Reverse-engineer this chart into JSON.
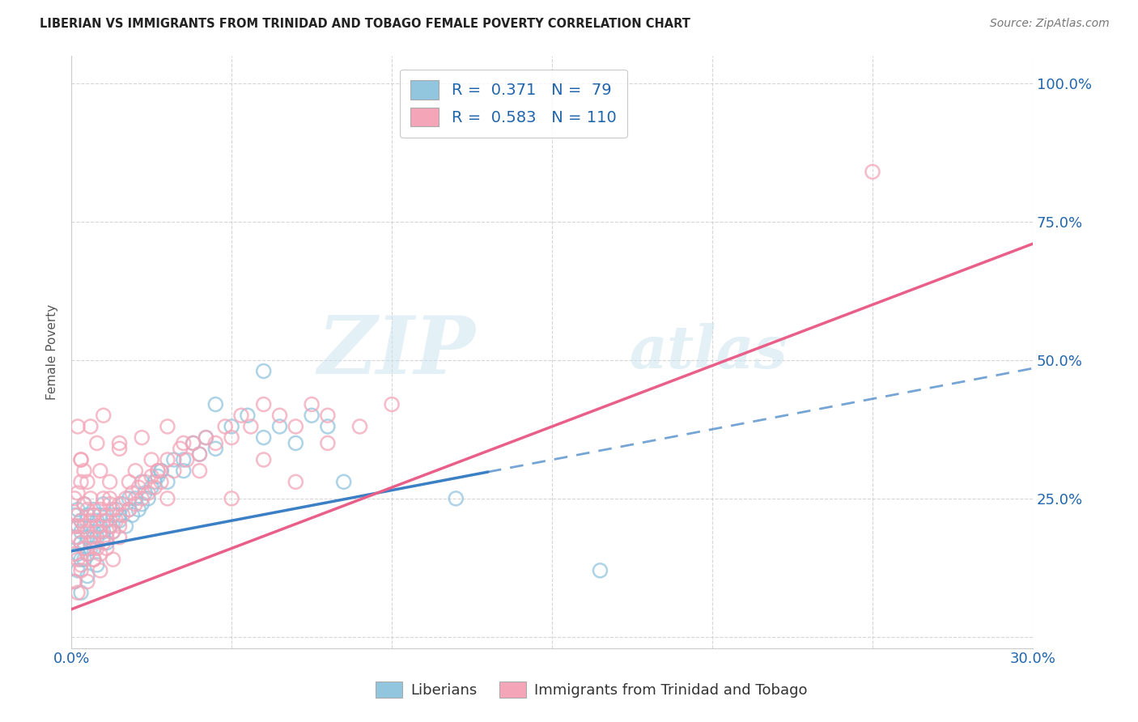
{
  "title": "LIBERIAN VS IMMIGRANTS FROM TRINIDAD AND TOBAGO FEMALE POVERTY CORRELATION CHART",
  "source": "Source: ZipAtlas.com",
  "ylabel": "Female Poverty",
  "xlim": [
    0.0,
    0.3
  ],
  "ylim": [
    -0.02,
    1.05
  ],
  "xticks": [
    0.0,
    0.05,
    0.1,
    0.15,
    0.2,
    0.25,
    0.3
  ],
  "xticklabels": [
    "0.0%",
    "",
    "",
    "",
    "",
    "",
    "30.0%"
  ],
  "yticks": [
    0.0,
    0.25,
    0.5,
    0.75,
    1.0
  ],
  "yticklabels": [
    "",
    "25.0%",
    "50.0%",
    "75.0%",
    "100.0%"
  ],
  "legend_blue_label": "R =  0.371   N =  79",
  "legend_pink_label": "R =  0.583   N = 110",
  "blue_color": "#92c5de",
  "pink_color": "#f4a5b8",
  "blue_line_color": "#3b7fc4",
  "pink_line_color": "#e8608a",
  "watermark_zip": "ZIP",
  "watermark_atlas": "atlas",
  "blue_scatter_x": [
    0.001,
    0.001,
    0.002,
    0.002,
    0.002,
    0.003,
    0.003,
    0.003,
    0.003,
    0.004,
    0.004,
    0.004,
    0.005,
    0.005,
    0.005,
    0.006,
    0.006,
    0.007,
    0.007,
    0.007,
    0.008,
    0.008,
    0.009,
    0.009,
    0.01,
    0.01,
    0.011,
    0.011,
    0.012,
    0.013,
    0.013,
    0.014,
    0.015,
    0.016,
    0.017,
    0.018,
    0.019,
    0.02,
    0.021,
    0.022,
    0.023,
    0.024,
    0.025,
    0.026,
    0.027,
    0.028,
    0.03,
    0.032,
    0.035,
    0.038,
    0.04,
    0.042,
    0.045,
    0.05,
    0.055,
    0.06,
    0.065,
    0.07,
    0.075,
    0.08,
    0.001,
    0.002,
    0.003,
    0.004,
    0.005,
    0.006,
    0.008,
    0.01,
    0.012,
    0.015,
    0.018,
    0.022,
    0.028,
    0.035,
    0.045,
    0.06,
    0.085,
    0.12,
    0.165
  ],
  "blue_scatter_y": [
    0.18,
    0.22,
    0.15,
    0.2,
    0.23,
    0.17,
    0.14,
    0.21,
    0.19,
    0.16,
    0.2,
    0.24,
    0.18,
    0.15,
    0.22,
    0.17,
    0.2,
    0.16,
    0.19,
    0.23,
    0.21,
    0.18,
    0.2,
    0.22,
    0.19,
    0.24,
    0.21,
    0.17,
    0.2,
    0.22,
    0.19,
    0.23,
    0.21,
    0.24,
    0.2,
    0.23,
    0.22,
    0.25,
    0.23,
    0.24,
    0.26,
    0.25,
    0.27,
    0.28,
    0.29,
    0.3,
    0.28,
    0.32,
    0.3,
    0.35,
    0.33,
    0.36,
    0.34,
    0.38,
    0.4,
    0.36,
    0.38,
    0.35,
    0.4,
    0.38,
    0.1,
    0.12,
    0.08,
    0.14,
    0.11,
    0.16,
    0.13,
    0.18,
    0.2,
    0.22,
    0.25,
    0.28,
    0.3,
    0.32,
    0.42,
    0.48,
    0.28,
    0.25,
    0.12
  ],
  "pink_scatter_x": [
    0.001,
    0.001,
    0.001,
    0.002,
    0.002,
    0.002,
    0.002,
    0.003,
    0.003,
    0.003,
    0.003,
    0.004,
    0.004,
    0.004,
    0.005,
    0.005,
    0.005,
    0.006,
    0.006,
    0.006,
    0.007,
    0.007,
    0.007,
    0.008,
    0.008,
    0.009,
    0.009,
    0.009,
    0.01,
    0.01,
    0.01,
    0.011,
    0.011,
    0.012,
    0.012,
    0.013,
    0.013,
    0.014,
    0.015,
    0.015,
    0.016,
    0.017,
    0.018,
    0.019,
    0.02,
    0.021,
    0.022,
    0.023,
    0.024,
    0.025,
    0.026,
    0.027,
    0.028,
    0.03,
    0.032,
    0.034,
    0.036,
    0.038,
    0.04,
    0.042,
    0.045,
    0.048,
    0.05,
    0.053,
    0.056,
    0.06,
    0.065,
    0.07,
    0.075,
    0.08,
    0.002,
    0.003,
    0.005,
    0.007,
    0.009,
    0.012,
    0.015,
    0.018,
    0.022,
    0.027,
    0.03,
    0.035,
    0.04,
    0.05,
    0.06,
    0.07,
    0.08,
    0.09,
    0.1,
    0.01,
    0.015,
    0.02,
    0.025,
    0.03,
    0.008,
    0.012,
    0.006,
    0.004,
    0.003,
    0.002,
    0.25,
    0.001,
    0.002,
    0.003,
    0.005,
    0.007,
    0.009,
    0.011,
    0.013,
    0.015
  ],
  "pink_scatter_y": [
    0.15,
    0.2,
    0.25,
    0.14,
    0.18,
    0.22,
    0.26,
    0.13,
    0.17,
    0.21,
    0.28,
    0.16,
    0.2,
    0.24,
    0.15,
    0.19,
    0.23,
    0.17,
    0.21,
    0.25,
    0.14,
    0.18,
    0.22,
    0.16,
    0.2,
    0.15,
    0.19,
    0.23,
    0.17,
    0.21,
    0.25,
    0.18,
    0.22,
    0.2,
    0.24,
    0.19,
    0.23,
    0.21,
    0.2,
    0.24,
    0.22,
    0.25,
    0.23,
    0.26,
    0.24,
    0.27,
    0.25,
    0.28,
    0.26,
    0.29,
    0.27,
    0.3,
    0.28,
    0.32,
    0.3,
    0.34,
    0.32,
    0.35,
    0.33,
    0.36,
    0.35,
    0.38,
    0.36,
    0.4,
    0.38,
    0.42,
    0.4,
    0.38,
    0.42,
    0.4,
    0.38,
    0.32,
    0.28,
    0.22,
    0.3,
    0.25,
    0.34,
    0.28,
    0.36,
    0.3,
    0.38,
    0.35,
    0.3,
    0.25,
    0.32,
    0.28,
    0.35,
    0.38,
    0.42,
    0.4,
    0.35,
    0.3,
    0.32,
    0.25,
    0.35,
    0.28,
    0.38,
    0.3,
    0.32,
    0.2,
    0.84,
    0.1,
    0.08,
    0.12,
    0.1,
    0.14,
    0.12,
    0.16,
    0.14,
    0.18
  ]
}
